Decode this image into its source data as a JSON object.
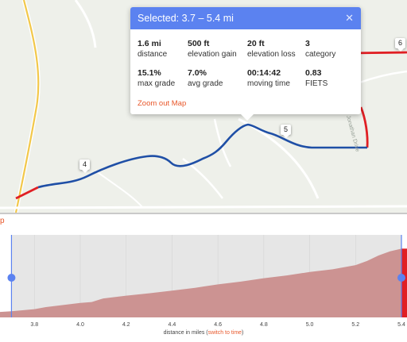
{
  "map": {
    "markers": [
      "4",
      "5",
      "6"
    ],
    "road_labels": [
      "Jonathan Drive"
    ],
    "colors": {
      "route": "#1f4fa6",
      "route_other": "#e01f24",
      "background": "#eef0ea"
    }
  },
  "popup": {
    "title": "Selected: 3.7 – 5.4 mi",
    "close_icon": "close-icon",
    "stats": [
      {
        "value": "1.6 mi",
        "label": "distance"
      },
      {
        "value": "500 ft",
        "label": "elevation gain"
      },
      {
        "value": "20 ft",
        "label": "elevation loss"
      },
      {
        "value": "3",
        "label": "category"
      },
      {
        "value": "15.1%",
        "label": "max grade"
      },
      {
        "value": "7.0%",
        "label": "avg grade"
      },
      {
        "value": "00:14:42",
        "label": "moving time"
      },
      {
        "value": "0.83",
        "label": "FIETS"
      }
    ],
    "zoom_link": "Zoom out Map",
    "header_color": "#5b82f0"
  },
  "panel": {
    "cut_label": "p"
  },
  "chart_data": {
    "type": "area",
    "x_ticks": [
      "3.8",
      "4.0",
      "4.2",
      "4.4",
      "4.6",
      "4.8",
      "5.0",
      "5.2",
      "5.4"
    ],
    "xlabel_prefix": "distance in miles (",
    "xlabel_link": "switch to time",
    "xlabel_suffix": ")",
    "xlim": [
      3.65,
      5.4
    ],
    "selection": [
      3.7,
      5.4
    ],
    "series": [
      {
        "x": [
          3.65,
          3.7,
          3.8,
          3.85,
          3.9,
          4.0,
          4.05,
          4.1,
          4.2,
          4.3,
          4.4,
          4.5,
          4.6,
          4.7,
          4.8,
          4.9,
          5.0,
          5.1,
          5.2,
          5.25,
          5.3,
          5.35,
          5.4
        ],
        "y": [
          40,
          45,
          60,
          75,
          85,
          105,
          112,
          138,
          158,
          175,
          195,
          215,
          240,
          260,
          285,
          305,
          330,
          350,
          380,
          410,
          450,
          480,
          500
        ]
      }
    ],
    "ylim": [
      0,
      600
    ],
    "colors": {
      "fill": "#cc9392",
      "selection_bg": "#e6e6e6",
      "handle": "#5b82f0",
      "red_segment": "#e01f24"
    }
  }
}
